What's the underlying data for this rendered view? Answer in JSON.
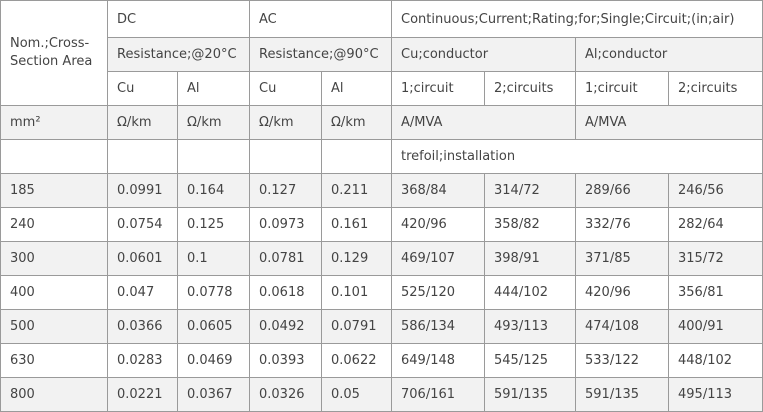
{
  "header": {
    "area": "Nom.;Cross-Section Area",
    "dc": "DC",
    "ac": "AC",
    "rating": "Continuous;Current;Rating;for;Single;Circuit;(in;air)",
    "res_dc": "Resistance;@20°C",
    "res_ac": "Resistance;@90°C",
    "cu_cond": "Cu;conductor",
    "al_cond": "Al;conductor",
    "dc_cu": "Cu",
    "dc_al": "Al",
    "ac_cu": "Cu",
    "ac_al": "Al",
    "cu_1": "1;circuit",
    "cu_2": "2;circuits",
    "al_1": "1;circuit",
    "al_2": "2;circuits",
    "unit_area": "mm²",
    "unit_dc_cu": "Ω/km",
    "unit_dc_al": "Ω/km",
    "unit_ac_cu": "Ω/km",
    "unit_ac_al": "Ω/km",
    "unit_cu": "A/MVA",
    "unit_al": "A/MVA",
    "installation": "trefoil;installation"
  },
  "table": {
    "rows": [
      [
        185,
        0.0991,
        0.164,
        0.127,
        0.211,
        "368/84",
        "314/72",
        "289/66",
        "246/56"
      ],
      [
        240,
        0.0754,
        0.125,
        0.0973,
        0.161,
        "420/96",
        "358/82",
        "332/76",
        "282/64"
      ],
      [
        300,
        0.0601,
        0.1,
        0.0781,
        0.129,
        "469/107",
        "398/91",
        "371/85",
        "315/72"
      ],
      [
        400,
        0.047,
        0.0778,
        0.0618,
        0.101,
        "525/120",
        "444/102",
        "420/96",
        "356/81"
      ],
      [
        500,
        0.0366,
        0.0605,
        0.0492,
        0.0791,
        "586/134",
        "493/113",
        "474/108",
        "400/91"
      ],
      [
        630,
        0.0283,
        0.0469,
        0.0393,
        0.0622,
        "649/148",
        "545/125",
        "533/122",
        "448/102"
      ],
      [
        800,
        0.0221,
        0.0367,
        0.0326,
        0.05,
        "706/161",
        "591/135",
        "591/135",
        "495/113"
      ]
    ]
  }
}
